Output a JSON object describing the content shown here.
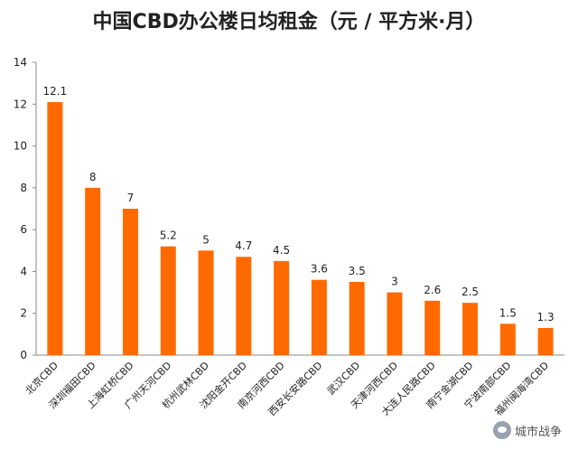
{
  "chart_data": {
    "type": "bar",
    "title": "中国CBD办公楼日均租金（元 / 平方米·月）",
    "xlabel": "",
    "ylabel": "",
    "ylim": [
      0,
      14
    ],
    "yticks": [
      0,
      2,
      4,
      6,
      8,
      10,
      12,
      14
    ],
    "grid": false,
    "bar_color": "#ff6a00",
    "categories": [
      "北京CBD",
      "深圳福田CBD",
      "上海虹桥CBD",
      "广州天河CBD",
      "杭州武林CBD",
      "沈阳金开CBD",
      "南京河西CBD",
      "西安长安路CBD",
      "武汉CBD",
      "天津河西CBD",
      "大连人民路CBD",
      "南宁金湖CBD",
      "宁波南部CBD",
      "福州闽海湾CBD"
    ],
    "values": [
      12.1,
      8,
      7,
      5.2,
      5,
      4.7,
      4.5,
      3.6,
      3.5,
      3,
      2.6,
      2.5,
      1.5,
      1.3
    ],
    "value_labels": [
      "12.1",
      "8",
      "7",
      "5.2",
      "5",
      "4.7",
      "4.5",
      "3.6",
      "3.5",
      "3",
      "2.6",
      "2.5",
      "1.5",
      "1.3"
    ]
  },
  "watermark": {
    "text": "城市战争",
    "icon": "wechat-icon"
  }
}
